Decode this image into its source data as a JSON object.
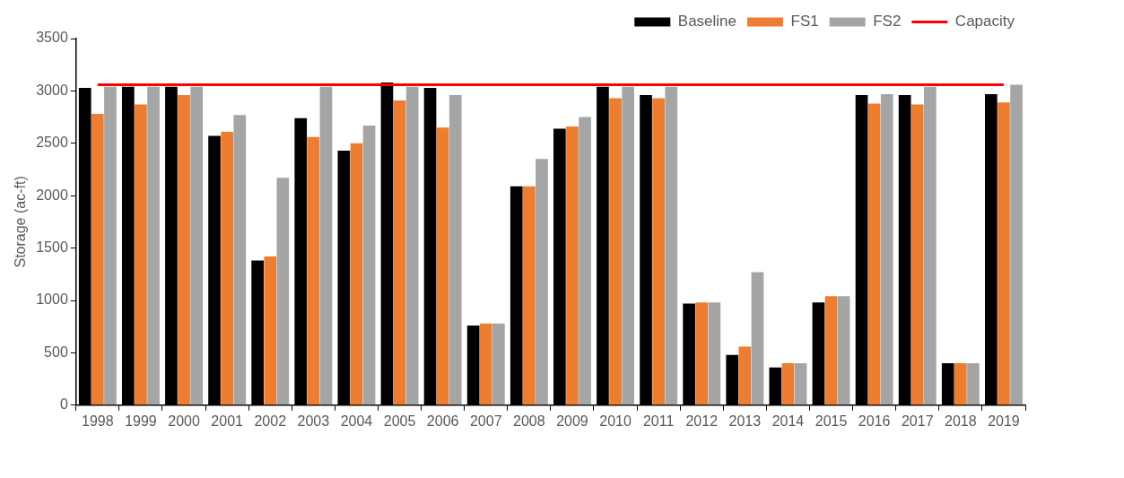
{
  "chart_data": {
    "type": "bar",
    "ylabel": "Storage (ac-ft)",
    "categories": [
      "1998",
      "1999",
      "2000",
      "2001",
      "2002",
      "2003",
      "2004",
      "2005",
      "2006",
      "2007",
      "2008",
      "2009",
      "2010",
      "2011",
      "2012",
      "2013",
      "2014",
      "2015",
      "2016",
      "2017",
      "2018",
      "2019"
    ],
    "series": [
      {
        "name": "Baseline",
        "color": "#000000",
        "values": [
          3030,
          3040,
          3040,
          2570,
          1380,
          2740,
          2430,
          3080,
          3030,
          760,
          2090,
          2640,
          3040,
          2960,
          970,
          480,
          360,
          980,
          2960,
          2960,
          400,
          2970
        ]
      },
      {
        "name": "FS1",
        "color": "#ed7d31",
        "values": [
          2780,
          2870,
          2960,
          2610,
          1420,
          2560,
          2500,
          2910,
          2650,
          780,
          2090,
          2660,
          2930,
          2930,
          980,
          560,
          400,
          1040,
          2880,
          2870,
          400,
          2890
        ]
      },
      {
        "name": "FS2",
        "color": "#a5a5a5",
        "values": [
          3040,
          3040,
          3040,
          2770,
          2170,
          3040,
          2670,
          3040,
          2960,
          780,
          2350,
          2750,
          3040,
          3040,
          980,
          1270,
          400,
          1040,
          2970,
          3040,
          400,
          3060
        ]
      },
      {
        "name": "Capacity",
        "type": "line",
        "color": "#ff0000",
        "marker": "none",
        "values": [
          3060,
          3060,
          3060,
          3060,
          3060,
          3060,
          3060,
          3060,
          3060,
          3060,
          3060,
          3060,
          3060,
          3060,
          3060,
          3060,
          3060,
          3060,
          3060,
          3060,
          3060,
          3060
        ]
      }
    ],
    "ylim": [
      0,
      3500
    ],
    "yticks": [
      0,
      500,
      1000,
      1500,
      2000,
      2500,
      3000,
      3500
    ],
    "grid": false,
    "legend": "top right"
  }
}
